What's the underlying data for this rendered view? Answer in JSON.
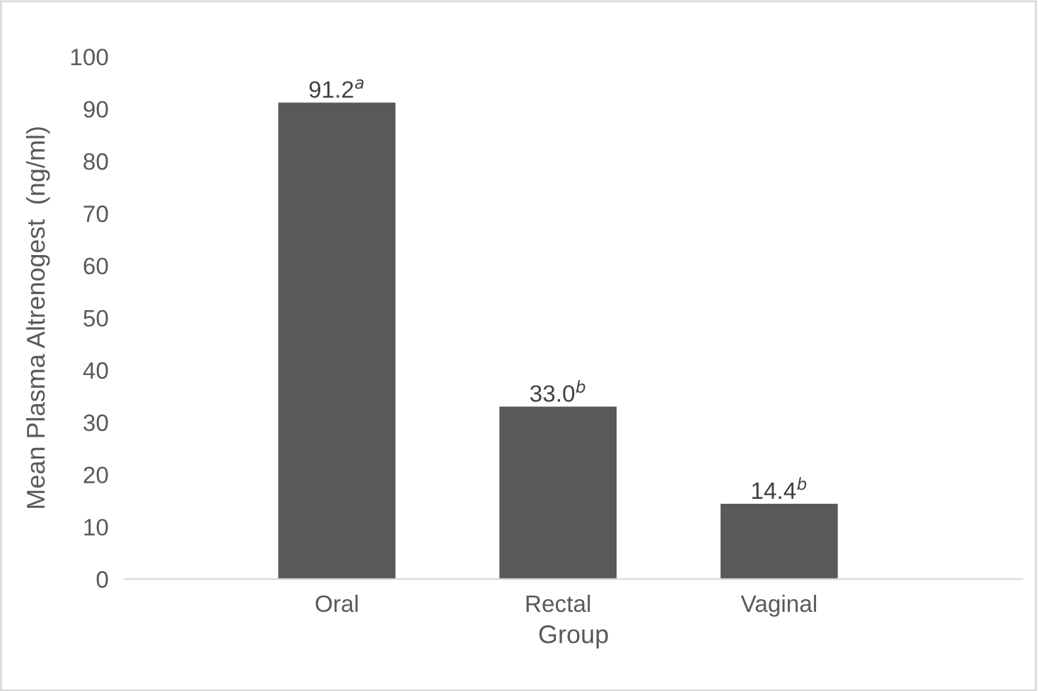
{
  "chart_data": {
    "type": "bar",
    "xlabel": "Group",
    "ylabel": "Mean Plasma Altrenogest  (ng/ml)",
    "categories": [
      "Oral",
      "Rectal",
      "Vaginal"
    ],
    "values": [
      91.2,
      33.0,
      14.4
    ],
    "value_labels": [
      "91.2$^{a}$",
      "33.0$^{b}$",
      "14.4$^{b}$"
    ],
    "color": "#595959",
    "ylim": [
      0,
      100
    ],
    "yticks": [
      0,
      10,
      20,
      30,
      40,
      50,
      60,
      70,
      80,
      90,
      100
    ],
    "grid": false,
    "legend": false
  }
}
